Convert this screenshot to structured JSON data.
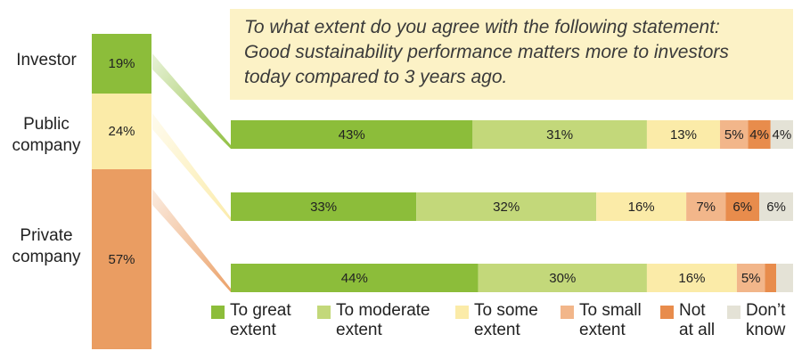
{
  "question": {
    "lines": [
      "To what extent do you agree with the following statement:",
      "Good sustainability performance matters more to investors",
      "today compared to 3 years ago."
    ]
  },
  "groups": [
    {
      "label_lines": [
        "Investor"
      ],
      "share": "19%",
      "share_value": 19,
      "color": "#8cbd3a"
    },
    {
      "label_lines": [
        "Public",
        "company"
      ],
      "share": "24%",
      "share_value": 24,
      "color": "#fbeba8"
    },
    {
      "label_lines": [
        "Private",
        "company"
      ],
      "share": "57%",
      "share_value": 57,
      "color": "#ea9d62"
    }
  ],
  "chart_data": {
    "type": "bar",
    "stacked": true,
    "orientation": "horizontal",
    "xlim": [
      0,
      100
    ],
    "categories": [
      "Investor",
      "Public company",
      "Private company"
    ],
    "series": [
      {
        "name": "To great extent",
        "color": "#8cbd3a",
        "values": [
          43,
          33,
          44
        ]
      },
      {
        "name": "To moderate extent",
        "color": "#c3d87a",
        "values": [
          31,
          32,
          30
        ]
      },
      {
        "name": "To some extent",
        "color": "#fbeba8",
        "values": [
          13,
          16,
          16
        ]
      },
      {
        "name": "To small extent",
        "color": "#f2b68a",
        "values": [
          5,
          7,
          5
        ]
      },
      {
        "name": "Not at all",
        "color": "#e88c4c",
        "values": [
          4,
          6,
          2
        ]
      },
      {
        "name": "Don’t know",
        "color": "#e4e2d6",
        "values": [
          4,
          6,
          3
        ]
      }
    ],
    "data_labels": [
      [
        "43%",
        "31%",
        "13%",
        "5%",
        "4%",
        "4%"
      ],
      [
        "33%",
        "32%",
        "16%",
        "7%",
        "6%",
        "6%"
      ],
      [
        "44%",
        "30%",
        "16%",
        "5%",
        "",
        ""
      ]
    ],
    "legend": {
      "position": "bottom",
      "items": [
        {
          "lines": [
            "To great",
            "extent"
          ]
        },
        {
          "lines": [
            "To moderate",
            "extent"
          ]
        },
        {
          "lines": [
            "To some",
            "extent"
          ]
        },
        {
          "lines": [
            "To small",
            "extent"
          ]
        },
        {
          "lines": [
            "Not",
            "at all"
          ]
        },
        {
          "lines": [
            "Don’t",
            "know"
          ]
        }
      ]
    }
  }
}
